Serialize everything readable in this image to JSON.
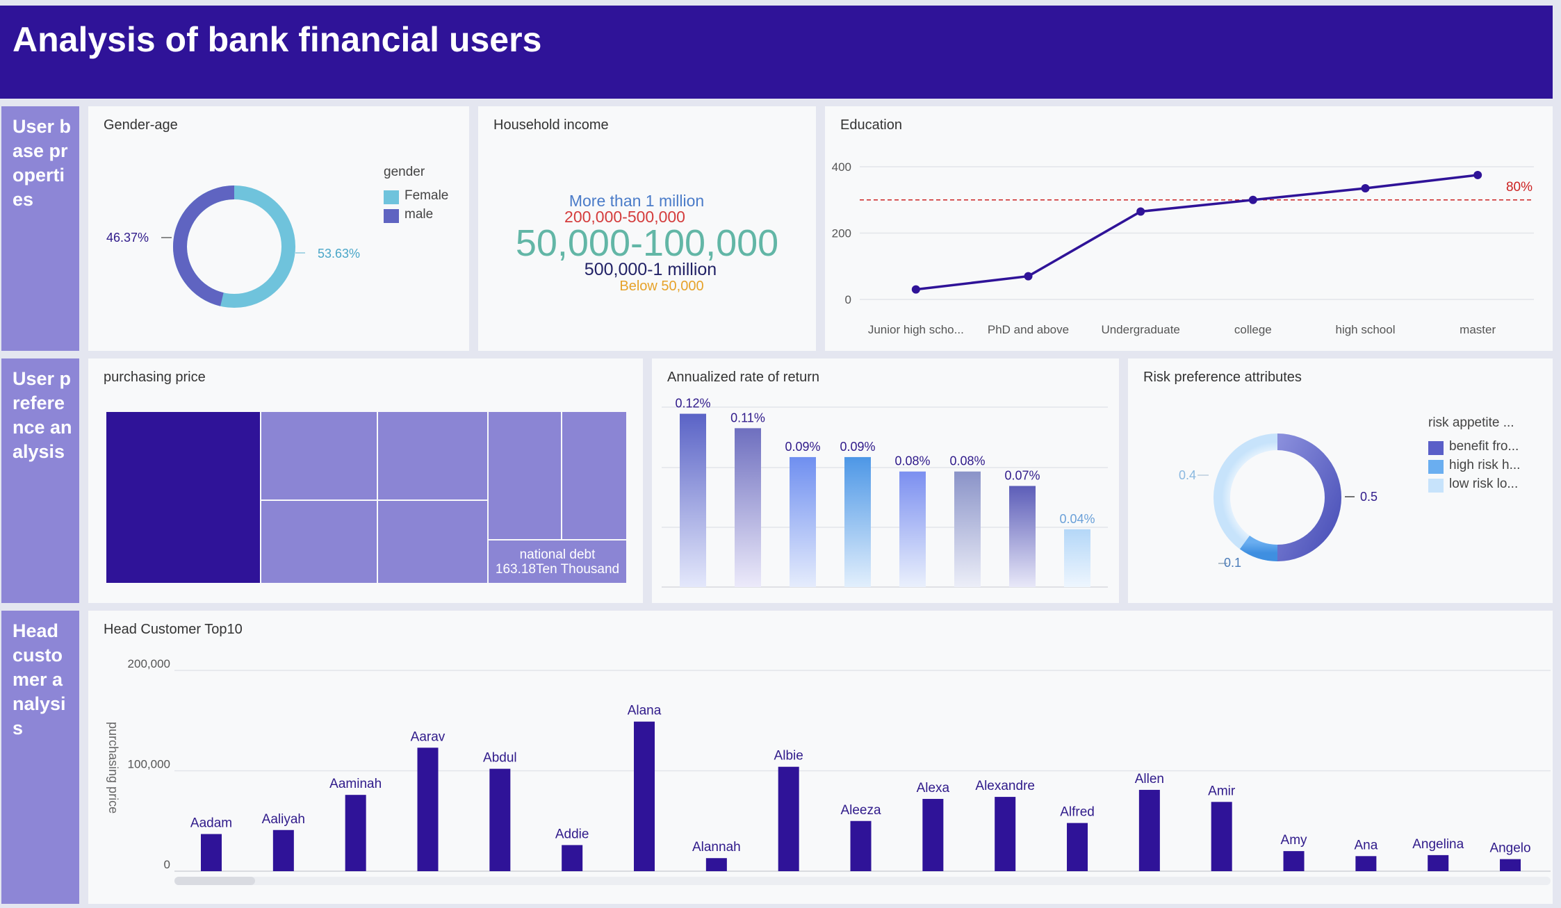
{
  "app": {
    "title": "Analysis of bank financial users"
  },
  "sections": [
    {
      "label": "User base properties"
    },
    {
      "label": "User preference analysis"
    },
    {
      "label": "Head customer analysis"
    }
  ],
  "colors": {
    "header": "#2f1398",
    "section": "#8d86d6",
    "primary": "#2f1398",
    "female": "#6fc3dc",
    "male": "#5f64c1",
    "threshold": "#cc2222"
  },
  "gender_age": {
    "title": "Gender-age",
    "legend_title": "gender",
    "legend": [
      {
        "name": "Female",
        "color": "#6fc3dc"
      },
      {
        "name": "male",
        "color": "#5f64c1"
      }
    ],
    "label_male": "46.37%",
    "label_female": "53.63%"
  },
  "household_income": {
    "title": "Household income",
    "words": [
      {
        "text": "More than 1 million",
        "color": "#4a7bc8"
      },
      {
        "text": "200,000-500,000",
        "color": "#d43c3c"
      },
      {
        "text": "50,000-100,000",
        "color": "#62b6a6"
      },
      {
        "text": "500,000-1 million",
        "color": "#222266"
      },
      {
        "text": "Below 50,000",
        "color": "#e6a22a"
      }
    ]
  },
  "education": {
    "title": "Education",
    "threshold_label": "80%"
  },
  "purchasing_price": {
    "title": "purchasing price",
    "label_name": "national debt",
    "label_value": "163.18Ten Thousand"
  },
  "annualized_return": {
    "title": "Annualized rate of return"
  },
  "risk_preference": {
    "title": "Risk preference attributes",
    "legend_title": "risk appetite ...",
    "legend": [
      {
        "name": "benefit fro...",
        "color": "#5a5fc8"
      },
      {
        "name": "high risk h...",
        "color": "#6aaef0"
      },
      {
        "name": "low risk lo...",
        "color": "#c7e3fb"
      }
    ],
    "label_a": "0.4",
    "label_b": "0.5",
    "label_c": "0.1"
  },
  "head_customer": {
    "title": "Head Customer Top10",
    "ylabel": "purchasing price"
  },
  "chart_data": [
    {
      "type": "pie",
      "title": "Gender-age",
      "categories": [
        "Female",
        "male"
      ],
      "values": [
        53.63,
        46.37
      ],
      "donut": true,
      "legend": "top-right"
    },
    {
      "type": "line",
      "title": "Education",
      "categories": [
        "Junior high scho...",
        "PhD and above",
        "Undergraduate",
        "college",
        "high school",
        "master"
      ],
      "values": [
        30,
        70,
        265,
        300,
        335,
        375
      ],
      "yticks": [
        0,
        200,
        400
      ],
      "ylim": [
        0,
        400
      ],
      "threshold": {
        "value": 300,
        "label": "80%"
      },
      "grid": true
    },
    {
      "type": "heatmap",
      "title": "purchasing price",
      "note": "treemap",
      "labeled_node": {
        "name": "national debt",
        "value": 163.18
      }
    },
    {
      "type": "bar",
      "title": "Annualized rate of return",
      "labels": [
        "0.12%",
        "0.11%",
        "0.09%",
        "0.09%",
        "0.08%",
        "0.08%",
        "0.07%",
        "0.04%"
      ],
      "values": [
        0.12,
        0.11,
        0.09,
        0.09,
        0.08,
        0.08,
        0.07,
        0.04
      ],
      "ylim": [
        0,
        0.14
      ],
      "grid": true
    },
    {
      "type": "pie",
      "title": "Risk preference attributes",
      "categories": [
        "benefit fro...",
        "high risk h...",
        "low risk lo..."
      ],
      "values": [
        0.5,
        0.1,
        0.4
      ],
      "donut": true,
      "legend": "top-right"
    },
    {
      "type": "bar",
      "title": "Head Customer Top10",
      "ylabel": "purchasing price",
      "yticks": [
        "0",
        "100,000",
        "200,000"
      ],
      "ylim": [
        0,
        200000
      ],
      "categories": [
        "Aadam",
        "Aaliyah",
        "Aaminah",
        "Aarav",
        "Abdul",
        "Addie",
        "Alana",
        "Alannah",
        "Albie",
        "Aleeza",
        "Alexa",
        "Alexandre",
        "Alfred",
        "Allen",
        "Amir",
        "Amy",
        "Ana",
        "Angelina",
        "Angelo"
      ],
      "values": [
        37000,
        41000,
        76000,
        123000,
        102000,
        26000,
        149000,
        13000,
        104000,
        50000,
        72000,
        74000,
        48000,
        81000,
        69000,
        20000,
        15000,
        16000,
        12000
      ],
      "grid": true
    }
  ]
}
